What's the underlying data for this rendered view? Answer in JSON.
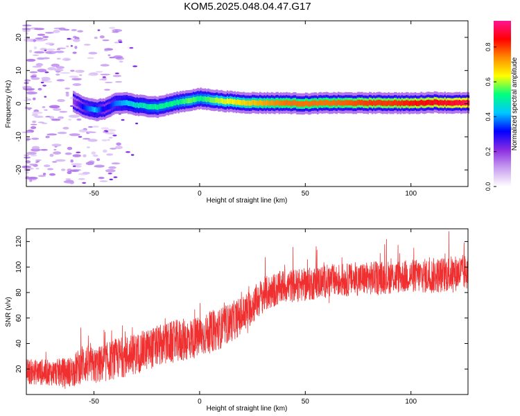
{
  "title": "KOM5.2025.048.04.47.G17",
  "colors": {
    "snr_line": "#f03030",
    "colormap": [
      "#ffffff",
      "#c9a0f0",
      "#8a2be2",
      "#0000ff",
      "#00c8ff",
      "#00ff7f",
      "#ffff00",
      "#ff8c00",
      "#ff0000",
      "#ff1493"
    ]
  },
  "chart_data": [
    {
      "type": "heatmap",
      "title": "",
      "xlabel": "Height of straight line (km)",
      "ylabel": "Frequency (Hz)",
      "xlim": [
        -82,
        127
      ],
      "ylim": [
        -25,
        25
      ],
      "xticks": [
        -50,
        0,
        50,
        100
      ],
      "yticks": [
        -20,
        -10,
        0,
        10,
        20
      ],
      "grid": false,
      "colorbar": {
        "label": "Normalized spectral amplitude",
        "range": [
          0,
          0.95
        ],
        "ticks": [
          0.0,
          0.2,
          0.4,
          0.6,
          0.8
        ]
      },
      "ridge": {
        "description": "doppler ridge",
        "x": [
          -60,
          -55,
          -50,
          -45,
          -40,
          -35,
          -30,
          -20,
          -10,
          -5,
          0,
          5,
          10,
          20,
          30,
          40,
          50,
          60,
          70,
          80,
          90,
          100,
          110,
          120,
          127
        ],
        "freq": [
          0.5,
          -1.0,
          -2.0,
          -1.5,
          0.0,
          0.3,
          -0.5,
          -1.0,
          0.5,
          1.0,
          1.5,
          1.2,
          0.8,
          0.3,
          0.2,
          0.2,
          0.0,
          0.2,
          0.2,
          0.2,
          0.2,
          0.1,
          0.4,
          0.2,
          0.2
        ],
        "amplitude": [
          0.2,
          0.35,
          0.45,
          0.3,
          0.4,
          0.45,
          0.5,
          0.55,
          0.55,
          0.6,
          0.55,
          0.6,
          0.65,
          0.7,
          0.75,
          0.8,
          0.8,
          0.8,
          0.82,
          0.85,
          0.85,
          0.88,
          0.9,
          0.92,
          0.95
        ]
      }
    },
    {
      "type": "line",
      "title": "",
      "xlabel": "Height of straight line (km)",
      "ylabel": "SNR (v/v)",
      "xlim": [
        -82,
        127
      ],
      "ylim": [
        0,
        130
      ],
      "xticks": [
        -50,
        0,
        50,
        100
      ],
      "yticks": [
        20,
        40,
        60,
        80,
        100,
        120
      ],
      "grid": false,
      "series": [
        {
          "x": [
            -82,
            -70,
            -60,
            -55,
            -50,
            -40,
            -30,
            -20,
            -10,
            0,
            10,
            20,
            30,
            40,
            50,
            60,
            70,
            80,
            90,
            100,
            110,
            120,
            127
          ],
          "values": [
            18,
            17,
            18,
            25,
            22,
            28,
            32,
            38,
            42,
            45,
            52,
            62,
            78,
            85,
            86,
            89,
            90,
            91,
            92,
            93,
            93,
            95,
            96
          ],
          "noise_amplitude": [
            10,
            10,
            12,
            16,
            14,
            16,
            16,
            16,
            17,
            16,
            16,
            15,
            14,
            13,
            13,
            13,
            13,
            13,
            13,
            13,
            14,
            14,
            14
          ]
        }
      ]
    }
  ]
}
